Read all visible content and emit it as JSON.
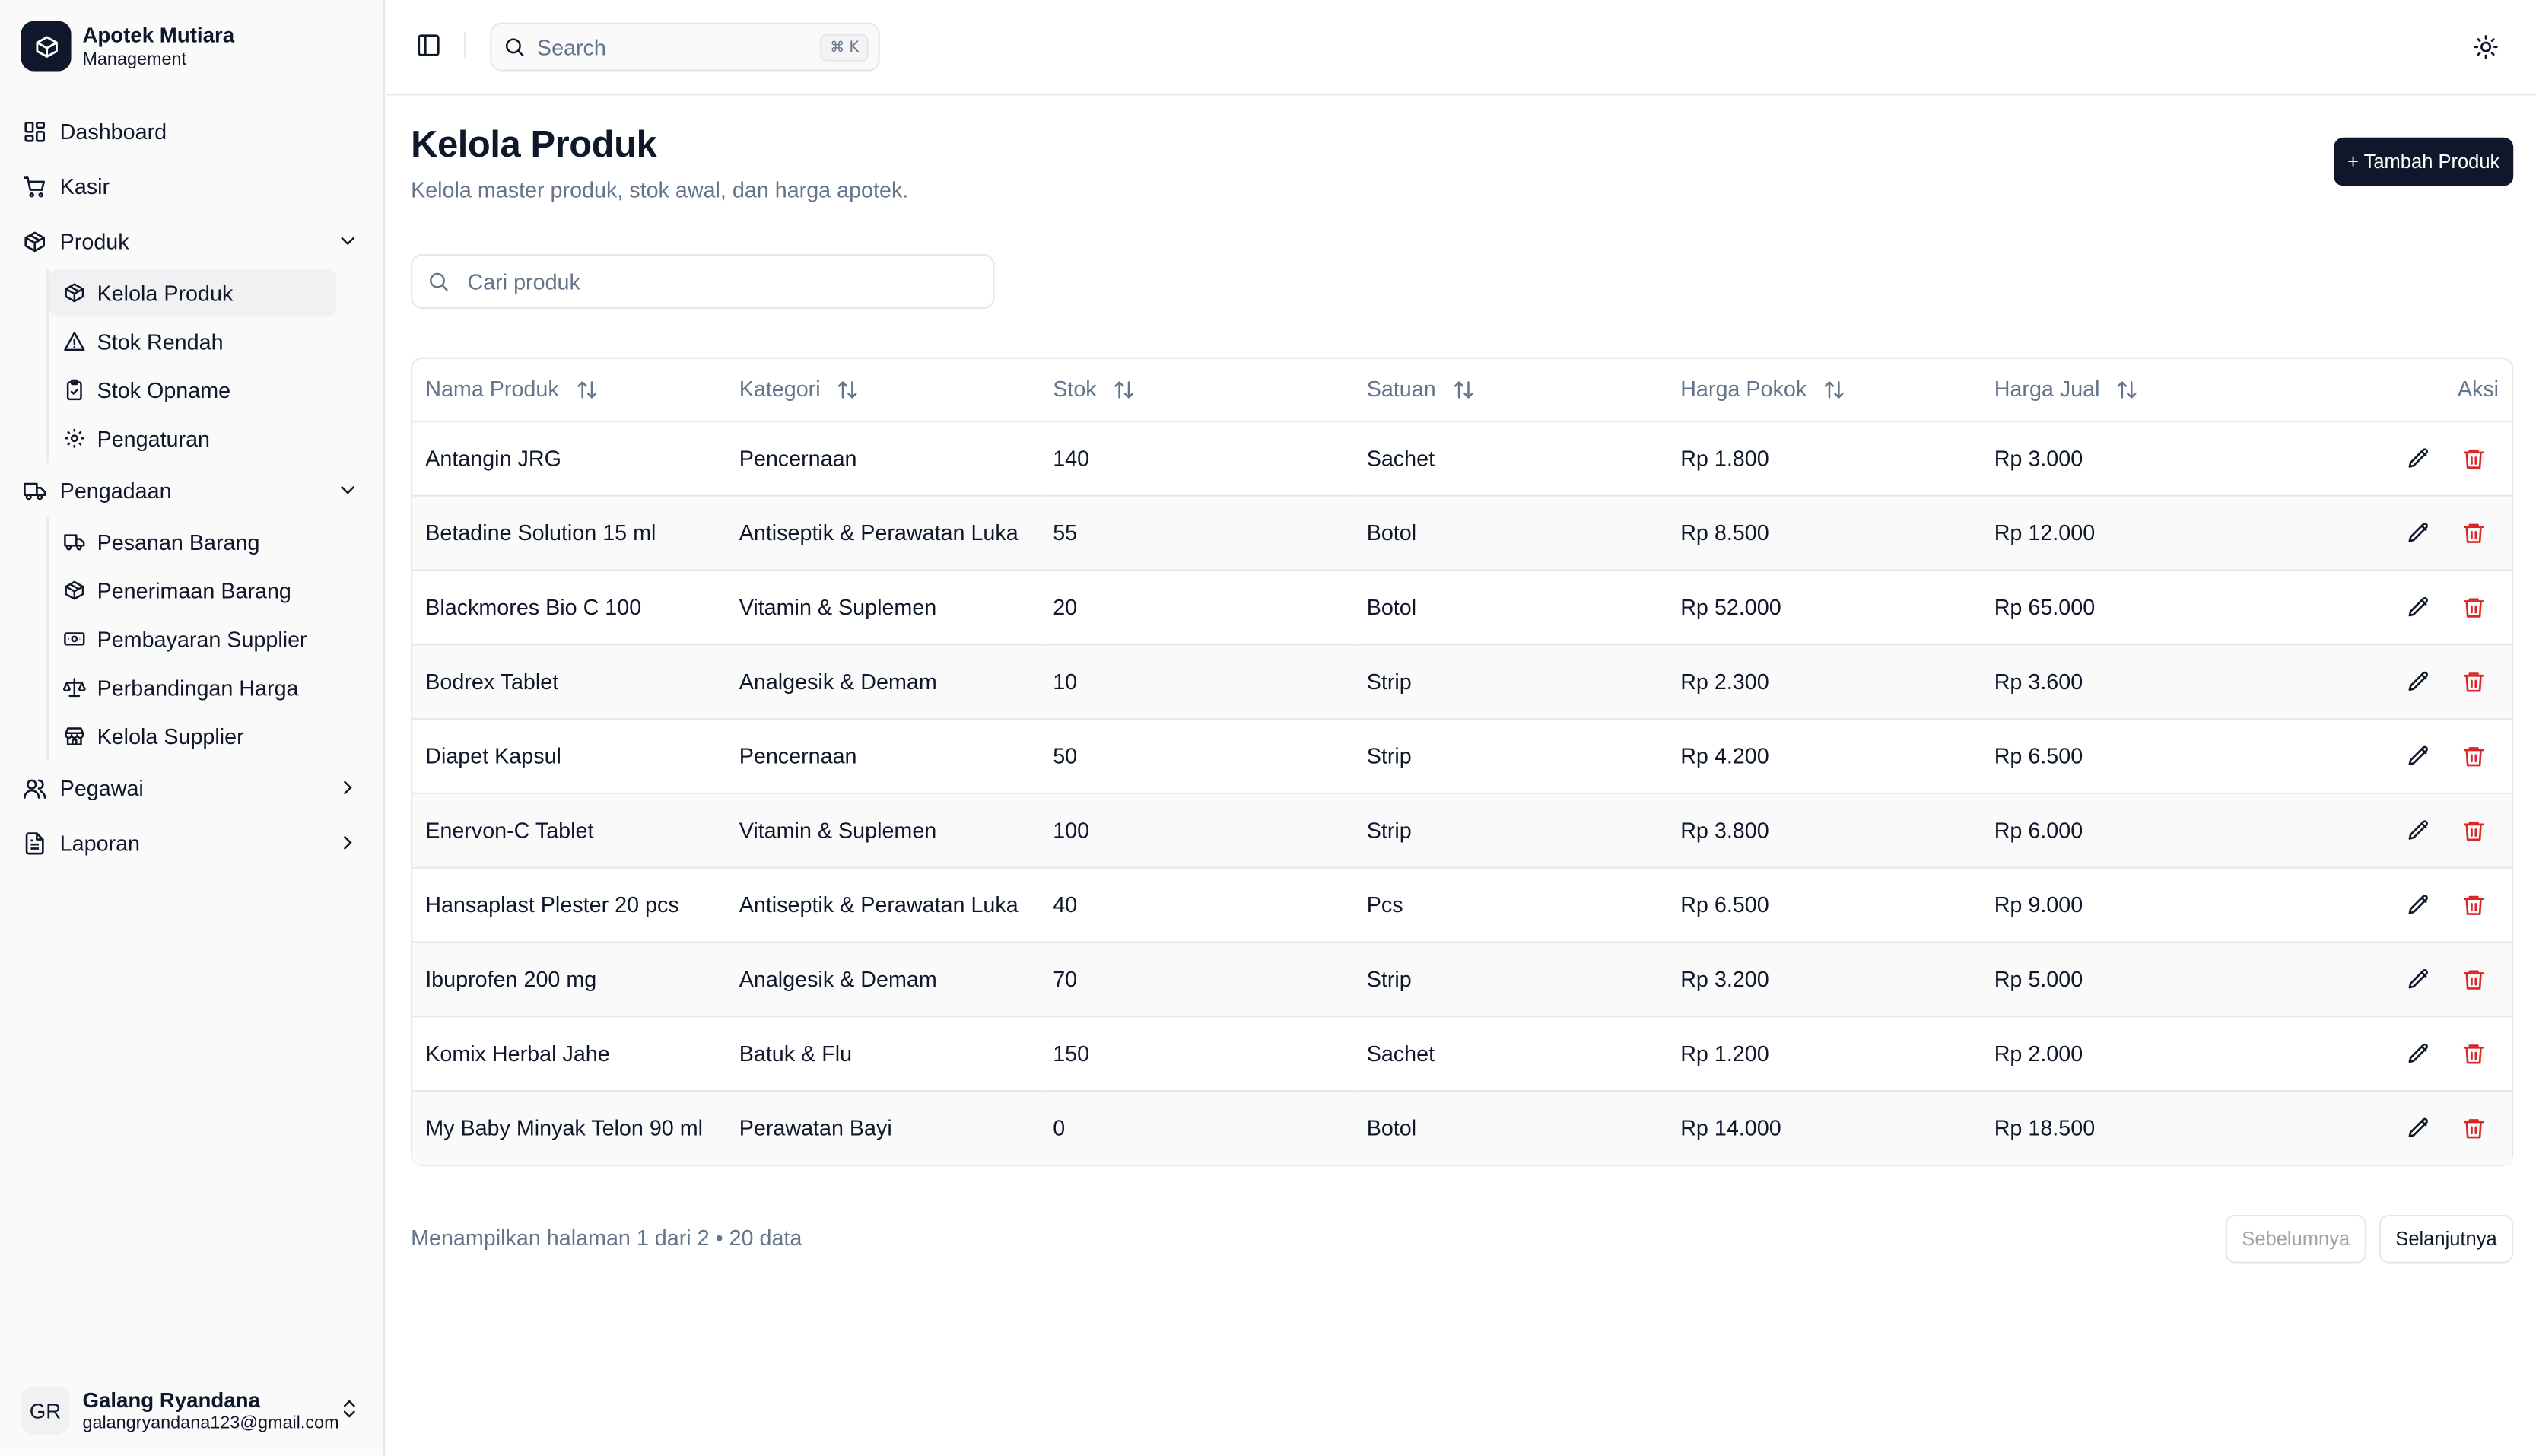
{
  "brand": {
    "title": "Apotek Mutiara",
    "subtitle": "Management",
    "logo_icon": "package-icon"
  },
  "sidebar": {
    "items": [
      {
        "label": "Dashboard",
        "icon": "dashboard-icon"
      },
      {
        "label": "Kasir",
        "icon": "cart-icon"
      },
      {
        "label": "Produk",
        "icon": "package-icon",
        "expanded": true,
        "children": [
          {
            "label": "Kelola Produk",
            "icon": "package-icon",
            "active": true
          },
          {
            "label": "Stok Rendah",
            "icon": "warning-icon"
          },
          {
            "label": "Stok Opname",
            "icon": "clipboard-check-icon"
          },
          {
            "label": "Pengaturan",
            "icon": "gear-icon"
          }
        ]
      },
      {
        "label": "Pengadaan",
        "icon": "truck-icon",
        "expanded": true,
        "children": [
          {
            "label": "Pesanan Barang",
            "icon": "truck-icon"
          },
          {
            "label": "Penerimaan Barang",
            "icon": "package-icon"
          },
          {
            "label": "Pembayaran Supplier",
            "icon": "banknote-icon"
          },
          {
            "label": "Perbandingan Harga",
            "icon": "scale-icon"
          },
          {
            "label": "Kelola Supplier",
            "icon": "store-icon"
          }
        ]
      },
      {
        "label": "Pegawai",
        "icon": "users-icon",
        "expanded": false
      },
      {
        "label": "Laporan",
        "icon": "file-text-icon",
        "expanded": false
      }
    ]
  },
  "user": {
    "initials": "GR",
    "name": "Galang Ryandana",
    "email": "galangryandana123@gmail.com"
  },
  "topbar": {
    "search_placeholder": "Search",
    "shortcut": "⌘ K"
  },
  "main": {
    "title": "Kelola Produk",
    "subtitle": "Kelola master produk, stok awal, dan harga apotek.",
    "add_button": "+ Tambah Produk",
    "search_placeholder": "Cari produk",
    "columns": [
      "Nama Produk",
      "Kategori",
      "Stok",
      "Satuan",
      "Harga Pokok",
      "Harga Jual",
      "Aksi"
    ],
    "rows": [
      [
        "Antangin JRG",
        "Pencernaan",
        "140",
        "Sachet",
        "Rp 1.800",
        "Rp 3.000"
      ],
      [
        "Betadine Solution 15 ml",
        "Antiseptik & Perawatan Luka",
        "55",
        "Botol",
        "Rp 8.500",
        "Rp 12.000"
      ],
      [
        "Blackmores Bio C 100",
        "Vitamin & Suplemen",
        "20",
        "Botol",
        "Rp 52.000",
        "Rp 65.000"
      ],
      [
        "Bodrex Tablet",
        "Analgesik & Demam",
        "10",
        "Strip",
        "Rp 2.300",
        "Rp 3.600"
      ],
      [
        "Diapet Kapsul",
        "Pencernaan",
        "50",
        "Strip",
        "Rp 4.200",
        "Rp 6.500"
      ],
      [
        "Enervon-C Tablet",
        "Vitamin & Suplemen",
        "100",
        "Strip",
        "Rp 3.800",
        "Rp 6.000"
      ],
      [
        "Hansaplast Plester 20 pcs",
        "Antiseptik & Perawatan Luka",
        "40",
        "Pcs",
        "Rp 6.500",
        "Rp 9.000"
      ],
      [
        "Ibuprofen 200 mg",
        "Analgesik & Demam",
        "70",
        "Strip",
        "Rp 3.200",
        "Rp 5.000"
      ],
      [
        "Komix Herbal Jahe",
        "Batuk & Flu",
        "150",
        "Sachet",
        "Rp 1.200",
        "Rp 2.000"
      ],
      [
        "My Baby Minyak Telon 90 ml",
        "Perawatan Bayi",
        "0",
        "Botol",
        "Rp 14.000",
        "Rp 18.500"
      ]
    ],
    "pagination": {
      "info": "Menampilkan halaman 1 dari 2 • 20 data",
      "prev": "Sebelumnya",
      "next": "Selanjutnya"
    }
  },
  "colors": {
    "primary": "#0f172a",
    "danger": "#dc2626",
    "muted": "#64748b",
    "border": "#e5e7eb"
  }
}
